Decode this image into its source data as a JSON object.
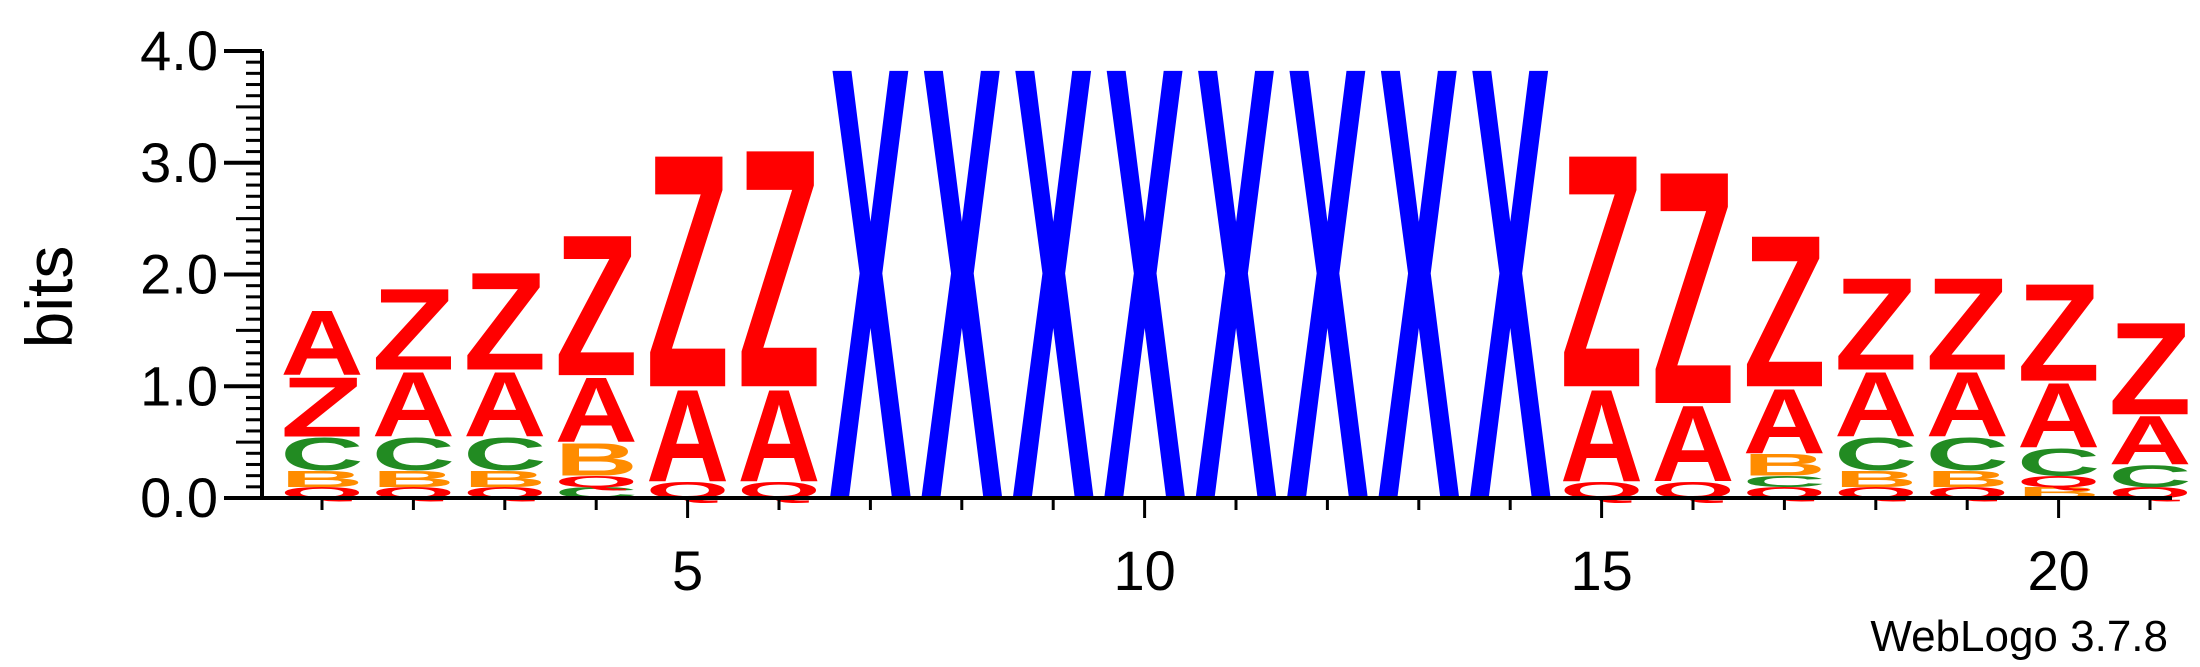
{
  "chart_data": {
    "type": "sequence-logo",
    "ylabel": "bits",
    "ylim": [
      0,
      4.0
    ],
    "y_ticks": [
      "0.0",
      "1.0",
      "2.0",
      "3.0",
      "4.0"
    ],
    "x_range": [
      1,
      21
    ],
    "x_ticks": [
      5,
      10,
      15,
      20
    ],
    "x_tick_labels": [
      "5",
      "10",
      "15",
      "20"
    ],
    "colors": {
      "A": "#ff0000",
      "Z": "#ff0000",
      "Q": "#ff0000",
      "X": "#0000ff",
      "C": "#228b22",
      "B": "#ff8c00"
    },
    "positions": [
      {
        "pos": 1,
        "stack": [
          [
            "Q",
            0.1
          ],
          [
            "B",
            0.15
          ],
          [
            "C",
            0.3
          ],
          [
            "Z",
            0.55
          ],
          [
            "A",
            0.6
          ]
        ]
      },
      {
        "pos": 2,
        "stack": [
          [
            "Q",
            0.1
          ],
          [
            "B",
            0.15
          ],
          [
            "C",
            0.3
          ],
          [
            "A",
            0.6
          ],
          [
            "Z",
            0.75
          ]
        ]
      },
      {
        "pos": 3,
        "stack": [
          [
            "Q",
            0.1
          ],
          [
            "B",
            0.15
          ],
          [
            "C",
            0.3
          ],
          [
            "A",
            0.6
          ],
          [
            "Z",
            0.9
          ]
        ]
      },
      {
        "pos": 4,
        "stack": [
          [
            "C",
            0.1
          ],
          [
            "Q",
            0.1
          ],
          [
            "B",
            0.3
          ],
          [
            "A",
            0.6
          ],
          [
            "Z",
            1.3
          ]
        ]
      },
      {
        "pos": 5,
        "stack": [
          [
            "Q",
            0.15
          ],
          [
            "A",
            0.85
          ],
          [
            "Z",
            2.15
          ]
        ]
      },
      {
        "pos": 6,
        "stack": [
          [
            "Q",
            0.15
          ],
          [
            "A",
            0.85
          ],
          [
            "Z",
            2.2
          ]
        ]
      },
      {
        "pos": 7,
        "stack": [
          [
            "X",
            4.0
          ]
        ]
      },
      {
        "pos": 8,
        "stack": [
          [
            "X",
            4.0
          ]
        ]
      },
      {
        "pos": 9,
        "stack": [
          [
            "X",
            4.0
          ]
        ]
      },
      {
        "pos": 10,
        "stack": [
          [
            "X",
            4.0
          ]
        ]
      },
      {
        "pos": 11,
        "stack": [
          [
            "X",
            4.0
          ]
        ]
      },
      {
        "pos": 12,
        "stack": [
          [
            "X",
            4.0
          ]
        ]
      },
      {
        "pos": 13,
        "stack": [
          [
            "X",
            4.0
          ]
        ]
      },
      {
        "pos": 14,
        "stack": [
          [
            "X",
            4.0
          ]
        ]
      },
      {
        "pos": 15,
        "stack": [
          [
            "Q",
            0.15
          ],
          [
            "A",
            0.85
          ],
          [
            "Z",
            2.15
          ]
        ]
      },
      {
        "pos": 16,
        "stack": [
          [
            "Q",
            0.15
          ],
          [
            "A",
            0.7
          ],
          [
            "Z",
            2.15
          ]
        ]
      },
      {
        "pos": 17,
        "stack": [
          [
            "Q",
            0.1
          ],
          [
            "C",
            0.1
          ],
          [
            "B",
            0.2
          ],
          [
            "A",
            0.6
          ],
          [
            "Z",
            1.4
          ]
        ]
      },
      {
        "pos": 18,
        "stack": [
          [
            "Q",
            0.1
          ],
          [
            "B",
            0.15
          ],
          [
            "C",
            0.3
          ],
          [
            "A",
            0.6
          ],
          [
            "Z",
            0.85
          ]
        ]
      },
      {
        "pos": 19,
        "stack": [
          [
            "Q",
            0.1
          ],
          [
            "B",
            0.15
          ],
          [
            "C",
            0.3
          ],
          [
            "A",
            0.6
          ],
          [
            "Z",
            0.85
          ]
        ]
      },
      {
        "pos": 20,
        "stack": [
          [
            "B",
            0.1
          ],
          [
            "Q",
            0.1
          ],
          [
            "C",
            0.25
          ],
          [
            "A",
            0.6
          ],
          [
            "Z",
            0.9
          ]
        ]
      },
      {
        "pos": 21,
        "stack": [
          [
            "Q",
            0.1
          ],
          [
            "C",
            0.2
          ],
          [
            "A",
            0.45
          ],
          [
            "Z",
            0.85
          ]
        ]
      }
    ]
  },
  "footer": {
    "credit": "WebLogo 3.7.8"
  }
}
